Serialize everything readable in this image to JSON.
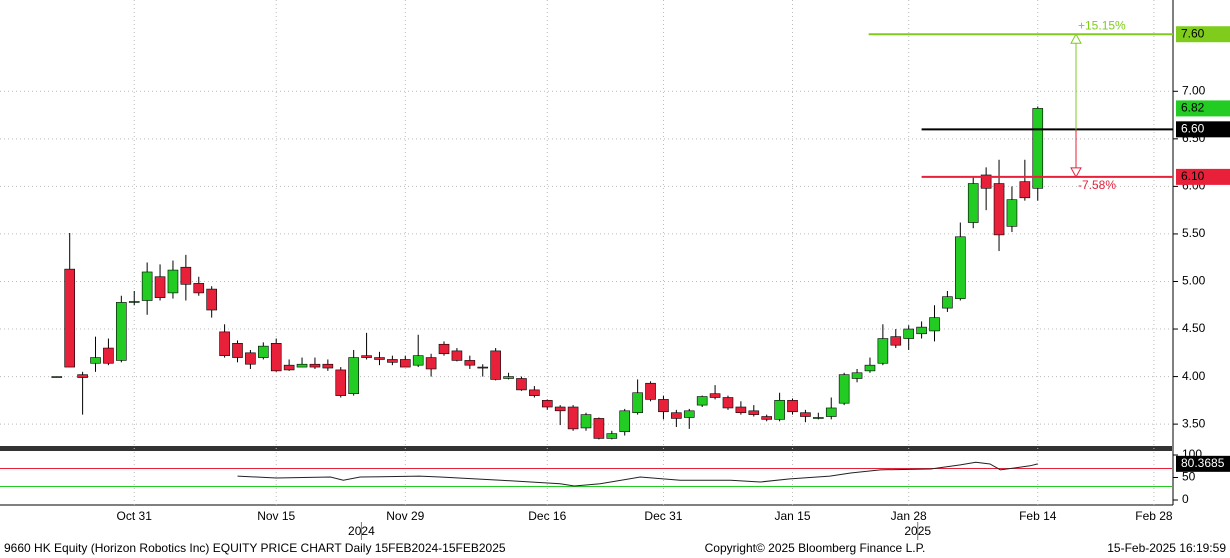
{
  "chart_data": {
    "type": "candlestick",
    "open": [
      4.0,
      5.13,
      4.02,
      4.14,
      4.3,
      4.17,
      4.78,
      4.8,
      5.05,
      4.88,
      5.15,
      4.98,
      4.92,
      4.47,
      4.35,
      4.25,
      4.2,
      4.35,
      4.12,
      4.1,
      4.13,
      4.13,
      4.07,
      3.82,
      4.22,
      4.2,
      4.18,
      4.18,
      4.12,
      4.2,
      4.34,
      4.27,
      4.17,
      4.1,
      4.27,
      3.98,
      3.98,
      3.86,
      3.75,
      3.68,
      3.68,
      3.46,
      3.56,
      3.35,
      3.42,
      3.62,
      3.93,
      3.76,
      3.62,
      3.57,
      3.7,
      3.82,
      3.78,
      3.68,
      3.64,
      3.58,
      3.55,
      3.75,
      3.62,
      3.56,
      3.58,
      3.72,
      3.98,
      4.06,
      4.14,
      4.42,
      4.4,
      4.45,
      4.48,
      4.72,
      4.82,
      5.62,
      6.12,
      6.03,
      5.58,
      6.05,
      5.98
    ],
    "high": [
      4.0,
      5.51,
      4.05,
      4.42,
      4.4,
      4.85,
      4.9,
      5.2,
      5.18,
      5.22,
      5.28,
      5.05,
      4.95,
      4.55,
      4.38,
      4.28,
      4.36,
      4.4,
      4.18,
      4.2,
      4.2,
      4.18,
      4.1,
      4.28,
      4.46,
      4.26,
      4.22,
      4.22,
      4.44,
      4.24,
      4.37,
      4.3,
      4.22,
      4.13,
      4.3,
      4.04,
      4.0,
      3.9,
      3.76,
      3.7,
      3.7,
      3.62,
      3.57,
      3.43,
      3.66,
      3.97,
      3.95,
      3.8,
      3.65,
      3.66,
      3.8,
      3.91,
      3.8,
      3.74,
      3.7,
      3.6,
      3.83,
      3.77,
      3.65,
      3.62,
      3.78,
      4.04,
      4.08,
      4.2,
      4.55,
      4.5,
      4.54,
      4.58,
      4.75,
      4.9,
      5.62,
      6.1,
      6.2,
      6.28,
      6.0,
      6.28,
      6.84
    ],
    "low": [
      4.0,
      4.1,
      3.6,
      4.05,
      4.12,
      4.15,
      4.75,
      4.65,
      4.8,
      4.82,
      4.8,
      4.85,
      4.62,
      4.2,
      4.15,
      4.08,
      4.18,
      4.05,
      4.06,
      4.1,
      4.08,
      4.06,
      3.78,
      3.8,
      4.18,
      4.12,
      4.12,
      4.1,
      4.1,
      4.0,
      4.22,
      4.16,
      4.08,
      4.0,
      3.96,
      3.97,
      3.85,
      3.78,
      3.65,
      3.49,
      3.43,
      3.43,
      3.34,
      3.34,
      3.38,
      3.6,
      3.74,
      3.55,
      3.47,
      3.45,
      3.68,
      3.76,
      3.65,
      3.6,
      3.58,
      3.53,
      3.53,
      3.6,
      3.52,
      3.55,
      3.55,
      3.7,
      3.94,
      4.04,
      4.12,
      4.3,
      4.28,
      4.4,
      4.37,
      4.68,
      4.8,
      5.56,
      5.75,
      5.32,
      5.52,
      5.85,
      5.85
    ],
    "close": [
      4.0,
      4.1,
      3.99,
      4.2,
      4.14,
      4.78,
      4.79,
      5.1,
      4.83,
      5.12,
      4.97,
      4.88,
      4.7,
      4.22,
      4.2,
      4.13,
      4.32,
      4.06,
      4.07,
      4.13,
      4.1,
      4.09,
      3.8,
      4.2,
      4.2,
      4.18,
      4.15,
      4.1,
      4.22,
      4.08,
      4.24,
      4.17,
      4.12,
      4.09,
      3.97,
      4.0,
      3.86,
      3.8,
      3.68,
      3.64,
      3.45,
      3.6,
      3.35,
      3.4,
      3.64,
      3.83,
      3.76,
      3.63,
      3.56,
      3.64,
      3.79,
      3.78,
      3.67,
      3.62,
      3.6,
      3.55,
      3.75,
      3.63,
      3.58,
      3.57,
      3.67,
      4.02,
      4.04,
      4.12,
      4.4,
      4.33,
      4.5,
      4.52,
      4.62,
      4.84,
      5.47,
      6.03,
      5.98,
      5.49,
      5.86,
      5.88,
      6.82
    ],
    "up_color": "#22cc22",
    "down_color": "#e8203a",
    "xlim": [
      -4.4,
      86.4
    ],
    "ylim": [
      3.27,
      7.96
    ],
    "xticks": [
      {
        "value": 6,
        "label": "Oct 31"
      },
      {
        "value": 17,
        "label": "Nov 15"
      },
      {
        "value": 27,
        "label": "Nov 29"
      },
      {
        "value": 38,
        "label": "Dec 16"
      },
      {
        "value": 47,
        "label": "Dec 31"
      },
      {
        "value": 57,
        "label": "Jan 15"
      },
      {
        "value": 66,
        "label": "Jan 28"
      },
      {
        "value": 76,
        "label": "Feb 14"
      },
      {
        "value": 85,
        "label": "Feb 28"
      }
    ],
    "year_ticks": [
      {
        "value": 23.6,
        "label": "2024"
      },
      {
        "value": 66.7,
        "label": "2025"
      }
    ],
    "yticks": [
      {
        "value": 3.5,
        "label": "3.50"
      },
      {
        "value": 4,
        "label": "4.00"
      },
      {
        "value": 4.5,
        "label": "4.50"
      },
      {
        "value": 5,
        "label": "5.00"
      },
      {
        "value": 5.5,
        "label": "5.50"
      },
      {
        "value": 6,
        "label": "6.00"
      },
      {
        "value": 6.5,
        "label": "6.50"
      },
      {
        "value": 7,
        "label": "7.00"
      }
    ],
    "last_price": {
      "value": 6.82,
      "label": "6.82"
    },
    "hlines": [
      {
        "value": 7.6,
        "label": "7.60",
        "color": "#7fcc1c",
        "start": 62.9
      },
      {
        "value": 6.6,
        "label": "6.60",
        "color": "#000000",
        "start": 67
      },
      {
        "value": 6.1,
        "label": "6.10",
        "color": "#e8203a",
        "start": 67
      }
    ],
    "annotations": [
      {
        "text": "+15.15%",
        "color": "#7fcc1c"
      },
      {
        "text": "-7.58%",
        "color": "#e8203a"
      }
    ],
    "rsi": {
      "x": [
        14,
        17,
        21.2,
        22.2,
        23.5,
        28.1,
        29.7,
        34.4,
        39,
        40.1,
        42.1,
        45.2,
        48.3,
        52.2,
        54.5,
        56.8,
        59.9,
        61.5,
        63.8,
        67.7,
        70,
        71.2,
        72.3,
        73.1,
        75.4,
        76
      ],
      "values": [
        53,
        49,
        51,
        44,
        51,
        53,
        51,
        44,
        36,
        31,
        36,
        51,
        44,
        44,
        40,
        47,
        53,
        60,
        67,
        69,
        78,
        84,
        80,
        67,
        76,
        80.3685
      ],
      "value_labels_last": "80.3685",
      "ylim": [
        0,
        100
      ],
      "yticks": [
        0,
        50,
        100
      ],
      "levels": [
        {
          "value": 70,
          "color": "#e8203a"
        },
        {
          "value": 30,
          "color": "#22cc22"
        }
      ]
    },
    "footer_left": "9660 HK Equity (Horizon Robotics Inc) EQUITY PRICE CHART  Daily 15FEB2024-15FEB2025",
    "footer_center": "Copyright© 2025 Bloomberg Finance L.P.",
    "footer_right": "15-Feb-2025 16:19:59"
  }
}
